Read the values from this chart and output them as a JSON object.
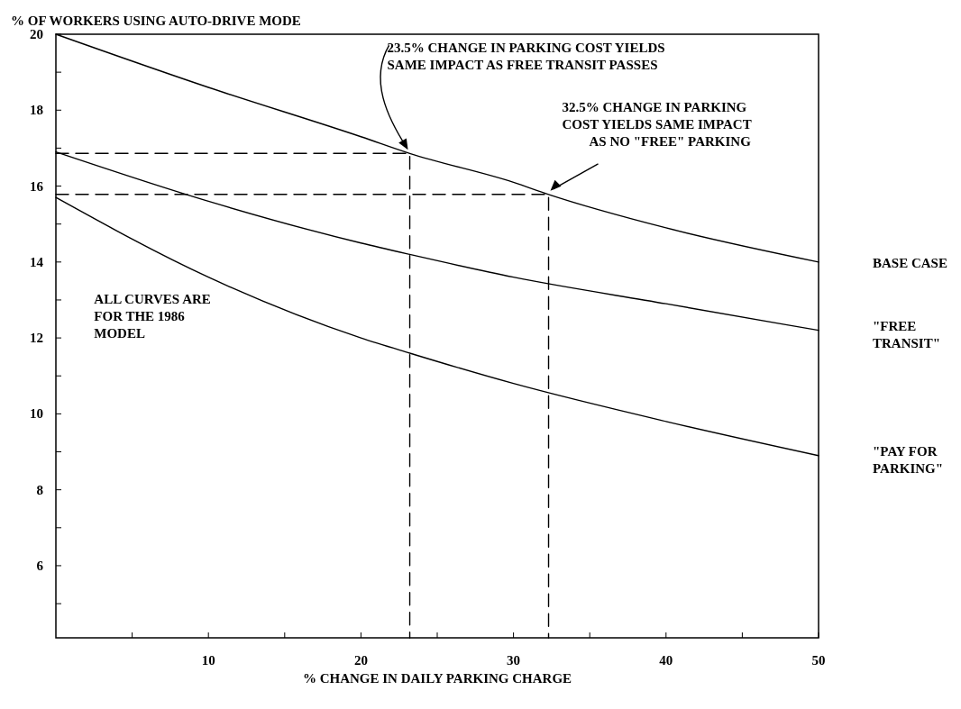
{
  "chart_data": {
    "type": "line",
    "ylabel": "% OF WORKERS USING AUTO-DRIVE MODE",
    "xlabel": "% CHANGE IN DAILY PARKING CHARGE",
    "xlim": [
      0,
      50
    ],
    "ylim": [
      4.1,
      20
    ],
    "xticks": [
      {
        "value": 5,
        "label": null
      },
      10,
      {
        "value": 15,
        "label": null
      },
      20,
      {
        "value": 25,
        "label": null
      },
      30,
      {
        "value": 35,
        "label": null
      },
      40,
      {
        "value": 45,
        "label": null
      },
      50
    ],
    "yticks": [
      {
        "value": 5,
        "label": null
      },
      6,
      {
        "value": 7,
        "label": null
      },
      8,
      {
        "value": 9,
        "label": null
      },
      10,
      {
        "value": 11,
        "label": null
      },
      12,
      {
        "value": 13,
        "label": null
      },
      14,
      {
        "value": 15,
        "label": null
      },
      16,
      {
        "value": 17,
        "label": null
      },
      18,
      {
        "value": 19,
        "label": null
      },
      20
    ],
    "grid": false,
    "marker": "none",
    "series": [
      {
        "name": "BASE CASE",
        "color": "#000000",
        "x": [
          0,
          10,
          20,
          23.2,
          30,
          32.3,
          40,
          50
        ],
        "values": [
          20,
          18.6,
          17.3,
          16.86,
          16.1,
          15.78,
          14.9,
          14.0
        ]
      },
      {
        "name": "\"FREE TRANSIT\"",
        "color": "#000000",
        "x": [
          0,
          10,
          20,
          23.2,
          30,
          40,
          50
        ],
        "values": [
          16.9,
          15.6,
          14.5,
          14.2,
          13.6,
          12.9,
          12.2
        ]
      },
      {
        "name": "\"PAY FOR PARKING\"",
        "color": "#000000",
        "x": [
          0,
          10,
          20,
          23.2,
          30,
          40,
          50
        ],
        "values": [
          15.7,
          13.6,
          12.0,
          11.6,
          10.8,
          9.8,
          8.9
        ]
      },
      {
        "color": "#000000",
        "line_style": "dashed",
        "x": [
          0,
          23.2,
          23.2
        ],
        "values": [
          16.86,
          16.86,
          4.1
        ]
      },
      {
        "color": "#000000",
        "line_style": "dashed",
        "x": [
          0,
          32.3,
          32.3
        ],
        "values": [
          15.78,
          15.78,
          4.1
        ]
      }
    ],
    "annotations": [
      {
        "text": "23.5% CHANGE IN PARKING COST YIELDS\nSAME IMPACT AS FREE TRANSIT PASSES",
        "x": 23.2,
        "y": 16.86
      },
      {
        "text": "32.5% CHANGE IN PARKING\nCOST YIELDS SAME IMPACT\nAS NO \"FREE\" PARKING",
        "x": 32.3,
        "y": 15.78
      },
      "ALL CURVES ARE\nFOR THE 1986\nMODEL"
    ]
  }
}
